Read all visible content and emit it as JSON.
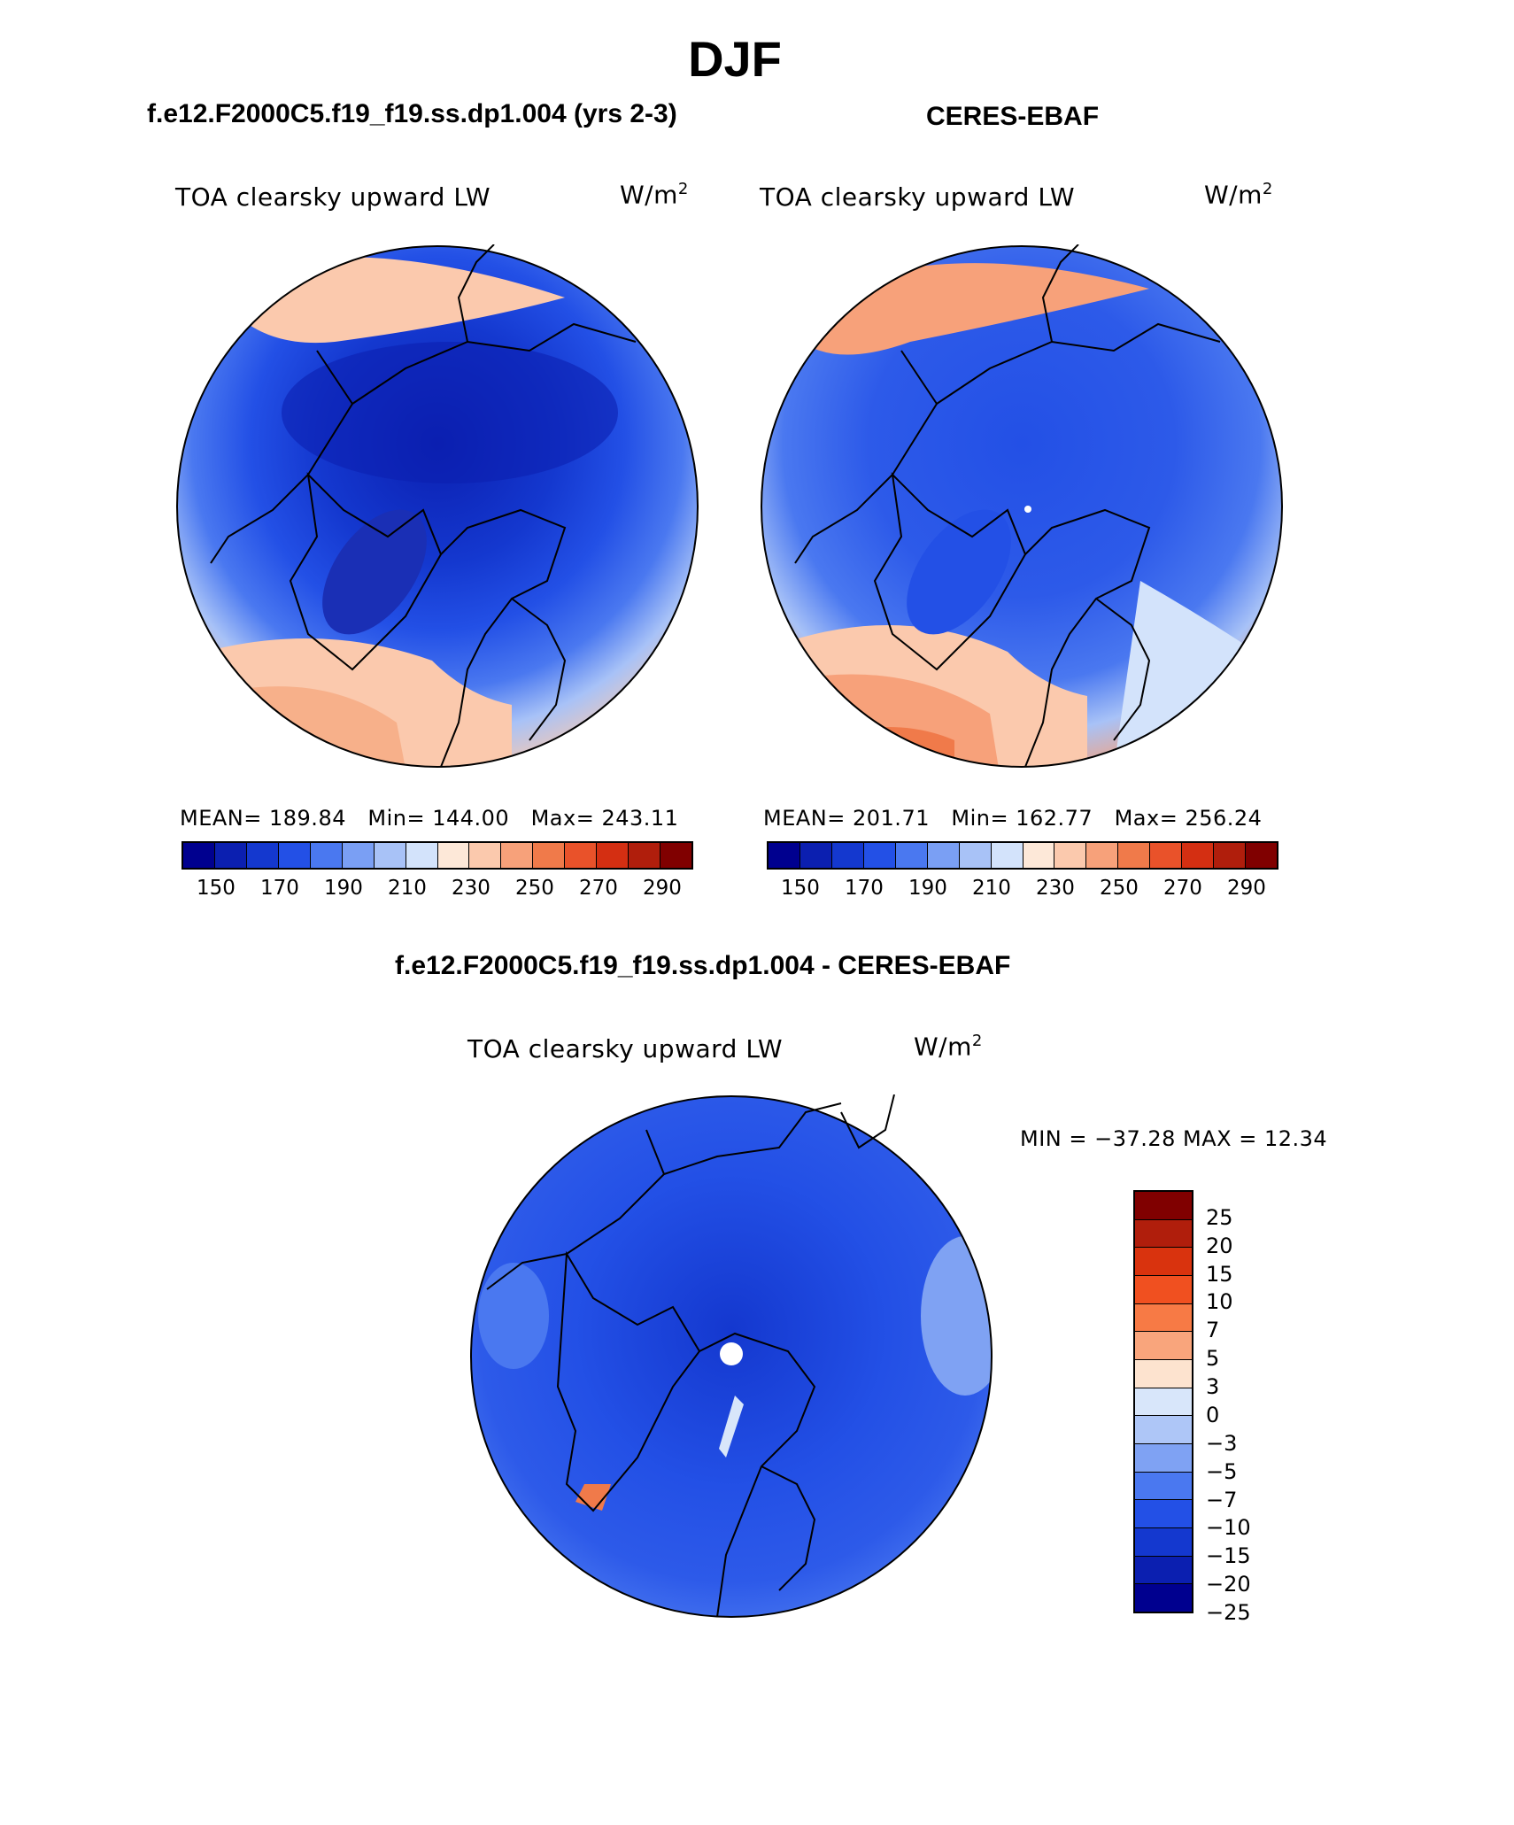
{
  "figure": {
    "season": "DJF",
    "colorbar_colors": [
      "#00008f",
      "#0b1fb0",
      "#1438cf",
      "#2350e6",
      "#4a78f0",
      "#7a9ff4",
      "#a8c2f7",
      "#d3e3fb",
      "#fde8d8",
      "#fbc9ad",
      "#f7a17a",
      "#f07a4a",
      "#e9522a",
      "#d42f12",
      "#b01e0c",
      "#800000"
    ],
    "colorbar_ticks": [
      "150",
      "170",
      "190",
      "210",
      "230",
      "250",
      "270",
      "290"
    ]
  },
  "panels": [
    {
      "title": "f.e12.F2000C5.f19_f19.ss.dp1.004 (yrs 2-3)",
      "variable": "TOA clearsky upward LW",
      "units": "W/m",
      "units_exp": "2",
      "mean": "189.84",
      "min": "144.00",
      "max": "243.11",
      "mean_label": "MEAN=",
      "min_label": "Min=",
      "max_label": "Max="
    },
    {
      "title": "CERES-EBAF",
      "variable": "TOA clearsky upward LW",
      "units": "W/m",
      "units_exp": "2",
      "mean": "201.71",
      "min": "162.77",
      "max": "256.24",
      "mean_label": "MEAN=",
      "min_label": "Min=",
      "max_label": "Max="
    }
  ],
  "difference": {
    "title": "f.e12.F2000C5.f19_f19.ss.dp1.004 - CERES-EBAF",
    "variable": "TOA clearsky upward LW",
    "units": "W/m",
    "units_exp": "2",
    "minmax_text": "MIN = −37.28 MAX =  12.34",
    "colorbar_colors": [
      "#800000",
      "#b01e0c",
      "#d9330e",
      "#f05020",
      "#f77a45",
      "#f9a57c",
      "#fde3cf",
      "#d8e6fa",
      "#aec6f7",
      "#7fa2f3",
      "#4a78f0",
      "#2350e6",
      "#1438cf",
      "#0b1fb0",
      "#00008f"
    ],
    "colorbar_ticks": [
      "25",
      "20",
      "15",
      "10",
      "7",
      "5",
      "3",
      "0",
      "−3",
      "−5",
      "−7",
      "−10",
      "−15",
      "−20",
      "−25"
    ]
  }
}
